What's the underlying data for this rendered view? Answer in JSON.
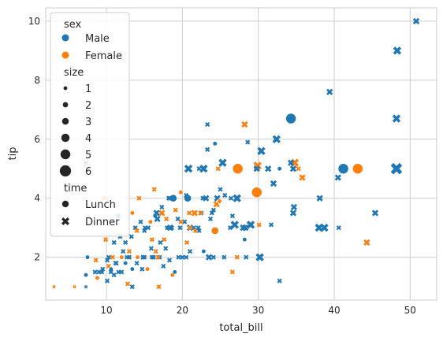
{
  "chart_data": {
    "type": "scatter",
    "xlabel": "total_bill",
    "ylabel": "tip",
    "xlim": [
      2.0,
      53.5
    ],
    "ylim": [
      0.55,
      10.45
    ],
    "xticks": [
      10,
      20,
      30,
      40,
      50
    ],
    "yticks": [
      2,
      4,
      6,
      8,
      10
    ],
    "grid": true,
    "legend_position": "top-left",
    "colors": {
      "Male": "#1f77b4",
      "Female": "#ff7f0e"
    },
    "legend": {
      "hue_title": "sex",
      "hue_items": [
        {
          "label": "Male",
          "color": "#1f77b4"
        },
        {
          "label": "Female",
          "color": "#ff7f0e"
        }
      ],
      "size_title": "size",
      "size_items": [
        {
          "label": "1",
          "size": 1
        },
        {
          "label": "2",
          "size": 2
        },
        {
          "label": "3",
          "size": 3
        },
        {
          "label": "4",
          "size": 4
        },
        {
          "label": "5",
          "size": 5
        },
        {
          "label": "6",
          "size": 6
        }
      ],
      "style_title": "time",
      "style_items": [
        {
          "label": "Lunch",
          "marker": "circle"
        },
        {
          "label": "Dinner",
          "marker": "x"
        }
      ]
    },
    "points": [
      [
        50.8,
        10.0,
        "Male",
        "Dinner",
        3
      ],
      [
        48.3,
        9.0,
        "Male",
        "Dinner",
        4
      ],
      [
        39.4,
        7.6,
        "Male",
        "Dinner",
        3
      ],
      [
        48.2,
        6.7,
        "Male",
        "Dinner",
        4
      ],
      [
        34.3,
        6.7,
        "Male",
        "Lunch",
        6
      ],
      [
        32.4,
        6.0,
        "Male",
        "Dinner",
        4
      ],
      [
        28.2,
        6.5,
        "Female",
        "Dinner",
        3
      ],
      [
        23.3,
        6.5,
        "Male",
        "Dinner",
        2
      ],
      [
        24.3,
        5.85,
        "Male",
        "Lunch",
        2
      ],
      [
        23.3,
        5.65,
        "Male",
        "Dinner",
        2
      ],
      [
        28.6,
        5.9,
        "Male",
        "Dinner",
        2
      ],
      [
        30.4,
        5.6,
        "Male",
        "Dinner",
        4
      ],
      [
        48.2,
        5.0,
        "Male",
        "Dinner",
        6
      ],
      [
        41.2,
        5.0,
        "Male",
        "Lunch",
        6
      ],
      [
        43.1,
        5.0,
        "Female",
        "Lunch",
        6
      ],
      [
        40.5,
        4.7,
        "Male",
        "Dinner",
        3
      ],
      [
        34.8,
        5.2,
        "Female",
        "Dinner",
        4
      ],
      [
        34.6,
        5.0,
        "Male",
        "Dinner",
        3
      ],
      [
        34.3,
        5.2,
        "Male",
        "Dinner",
        3
      ],
      [
        35.3,
        5.0,
        "Female",
        "Dinner",
        2
      ],
      [
        35.8,
        4.7,
        "Female",
        "Dinner",
        3
      ],
      [
        29.9,
        5.1,
        "Female",
        "Dinner",
        4
      ],
      [
        29.8,
        5.0,
        "Male",
        "Dinner",
        3
      ],
      [
        31.3,
        5.0,
        "Male",
        "Dinner",
        3
      ],
      [
        32.8,
        5.0,
        "Male",
        "Lunch",
        2
      ],
      [
        27.3,
        5.0,
        "Female",
        "Lunch",
        6
      ],
      [
        25.3,
        5.2,
        "Male",
        "Dinner",
        4
      ],
      [
        24.7,
        5.0,
        "Female",
        "Dinner",
        2
      ],
      [
        22.8,
        5.0,
        "Male",
        "Dinner",
        4
      ],
      [
        20.8,
        5.0,
        "Male",
        "Dinner",
        4
      ],
      [
        22.2,
        5.0,
        "Male",
        "Dinner",
        2
      ],
      [
        7.3,
        5.2,
        "Male",
        "Dinner",
        2
      ],
      [
        29.8,
        4.2,
        "Female",
        "Lunch",
        6
      ],
      [
        32.0,
        4.5,
        "Male",
        "Dinner",
        3
      ],
      [
        38.1,
        4.0,
        "Male",
        "Dinner",
        3
      ],
      [
        25.0,
        4.3,
        "Male",
        "Dinner",
        2
      ],
      [
        24.6,
        4.0,
        "Male",
        "Dinner",
        3
      ],
      [
        20.7,
        4.0,
        "Male",
        "Lunch",
        4
      ],
      [
        19.8,
        4.2,
        "Female",
        "Lunch",
        2
      ],
      [
        18.8,
        4.0,
        "Male",
        "Lunch",
        4
      ],
      [
        18.2,
        4.0,
        "Male",
        "Dinner",
        2
      ],
      [
        16.3,
        4.3,
        "Female",
        "Dinner",
        2
      ],
      [
        14.3,
        4.0,
        "Female",
        "Dinner",
        2
      ],
      [
        9.7,
        4.0,
        "Female",
        "Dinner",
        2
      ],
      [
        11.6,
        3.4,
        "Male",
        "Dinner",
        2
      ],
      [
        26.4,
        4.0,
        "Male",
        "Dinner",
        2
      ],
      [
        27.2,
        4.0,
        "Male",
        "Dinner",
        4
      ],
      [
        22.7,
        4.0,
        "Male",
        "Dinner",
        2
      ],
      [
        23.1,
        4.0,
        "Male",
        "Dinner",
        3
      ],
      [
        26.9,
        3.1,
        "Male",
        "Dinner",
        4
      ],
      [
        24.1,
        3.6,
        "Male",
        "Dinner",
        2
      ],
      [
        24.5,
        3.8,
        "Female",
        "Dinner",
        3
      ],
      [
        24.9,
        3.9,
        "Female",
        "Lunch",
        2
      ],
      [
        25.6,
        4.1,
        "Male",
        "Dinner",
        2
      ],
      [
        26.3,
        3.0,
        "Male",
        "Dinner",
        2
      ],
      [
        28.0,
        3.0,
        "Male",
        "Dinner",
        3
      ],
      [
        28.3,
        3.0,
        "Male",
        "Dinner",
        3
      ],
      [
        29.0,
        3.1,
        "Male",
        "Dinner",
        4
      ],
      [
        30.1,
        3.1,
        "Female",
        "Dinner",
        2
      ],
      [
        31.7,
        3.1,
        "Male",
        "Dinner",
        2
      ],
      [
        34.6,
        3.5,
        "Male",
        "Dinner",
        3
      ],
      [
        34.7,
        3.7,
        "Male",
        "Dinner",
        3
      ],
      [
        38.0,
        3.0,
        "Male",
        "Dinner",
        4
      ],
      [
        38.7,
        3.0,
        "Male",
        "Dinner",
        4
      ],
      [
        40.6,
        3.0,
        "Male",
        "Dinner",
        2
      ],
      [
        45.4,
        3.5,
        "Male",
        "Dinner",
        3
      ],
      [
        44.3,
        2.5,
        "Female",
        "Dinner",
        3
      ],
      [
        28.2,
        2.6,
        "Male",
        "Lunch",
        2
      ],
      [
        26.6,
        3.4,
        "Male",
        "Dinner",
        2
      ],
      [
        23.7,
        3.3,
        "Male",
        "Dinner",
        2
      ],
      [
        22.5,
        3.5,
        "Male",
        "Dinner",
        2
      ],
      [
        21.6,
        3.5,
        "Female",
        "Dinner",
        3
      ],
      [
        20.9,
        3.5,
        "Female",
        "Dinner",
        2
      ],
      [
        21.0,
        3.0,
        "Male",
        "Dinner",
        3
      ],
      [
        21.5,
        3.0,
        "Male",
        "Dinner",
        2
      ],
      [
        20.3,
        3.2,
        "Male",
        "Dinner",
        2
      ],
      [
        19.8,
        3.2,
        "Female",
        "Dinner",
        2
      ],
      [
        18.4,
        3.0,
        "Male",
        "Dinner",
        3
      ],
      [
        17.3,
        3.5,
        "Female",
        "Dinner",
        3
      ],
      [
        17.9,
        3.3,
        "Female",
        "Dinner",
        2
      ],
      [
        16.4,
        3.4,
        "Male",
        "Lunch",
        2
      ],
      [
        15.8,
        3.2,
        "Female",
        "Lunch",
        2
      ],
      [
        15.1,
        3.0,
        "Male",
        "Dinner",
        2
      ],
      [
        14.5,
        3.2,
        "Male",
        "Dinner",
        2
      ],
      [
        13.4,
        3.5,
        "Female",
        "Lunch",
        2
      ],
      [
        13.8,
        3.0,
        "Male",
        "Dinner",
        2
      ],
      [
        12.5,
        2.5,
        "Male",
        "Dinner",
        2
      ],
      [
        11.0,
        2.5,
        "Male",
        "Dinner",
        2
      ],
      [
        10.3,
        1.7,
        "Female",
        "Dinner",
        2
      ],
      [
        10.1,
        1.9,
        "Male",
        "Dinner",
        2
      ],
      [
        10.3,
        2.0,
        "Male",
        "Dinner",
        2
      ],
      [
        10.8,
        2.0,
        "Female",
        "Dinner",
        2
      ],
      [
        11.2,
        1.8,
        "Male",
        "Dinner",
        2
      ],
      [
        11.6,
        1.5,
        "Male",
        "Dinner",
        2
      ],
      [
        12.0,
        2.0,
        "Female",
        "Lunch",
        2
      ],
      [
        12.5,
        1.8,
        "Male",
        "Lunch",
        2
      ],
      [
        13.0,
        2.0,
        "Female",
        "Lunch",
        2
      ],
      [
        13.4,
        1.6,
        "Male",
        "Lunch",
        2
      ],
      [
        14.1,
        2.0,
        "Female",
        "Lunch",
        2
      ],
      [
        14.8,
        2.0,
        "Male",
        "Dinner",
        2
      ],
      [
        15.4,
        1.6,
        "Female",
        "Lunch",
        2
      ],
      [
        16.0,
        2.0,
        "Male",
        "Dinner",
        2
      ],
      [
        16.5,
        2.2,
        "Female",
        "Dinner",
        2
      ],
      [
        17.0,
        2.0,
        "Male",
        "Dinner",
        2
      ],
      [
        17.5,
        1.7,
        "Male",
        "Dinner",
        2
      ],
      [
        18.3,
        1.9,
        "Male",
        "Dinner",
        2
      ],
      [
        18.7,
        1.4,
        "Female",
        "Lunch",
        2
      ],
      [
        19.0,
        1.5,
        "Male",
        "Lunch",
        2
      ],
      [
        19.5,
        2.0,
        "Male",
        "Dinner",
        2
      ],
      [
        20.0,
        2.0,
        "Male",
        "Dinner",
        2
      ],
      [
        20.5,
        2.0,
        "Male",
        "Dinner",
        2
      ],
      [
        21.0,
        2.2,
        "Male",
        "Dinner",
        2
      ],
      [
        22.2,
        2.9,
        "Male",
        "Dinner",
        2
      ],
      [
        22.8,
        2.2,
        "Male",
        "Lunch",
        2
      ],
      [
        23.5,
        2.0,
        "Male",
        "Dinner",
        3
      ],
      [
        24.1,
        2.0,
        "Male",
        "Dinner",
        2
      ],
      [
        24.3,
        2.9,
        "Female",
        "Lunch",
        4
      ],
      [
        25.5,
        2.0,
        "Male",
        "Dinner",
        2
      ],
      [
        26.6,
        1.5,
        "Female",
        "Dinner",
        2
      ],
      [
        27.2,
        2.0,
        "Female",
        "Dinner",
        2
      ],
      [
        28.4,
        2.0,
        "Male",
        "Dinner",
        2
      ],
      [
        30.2,
        2.0,
        "Male",
        "Dinner",
        4
      ],
      [
        32.8,
        1.2,
        "Male",
        "Dinner",
        2
      ],
      [
        7.3,
        1.4,
        "Male",
        "Lunch",
        2
      ],
      [
        7.5,
        2.0,
        "Male",
        "Lunch",
        2
      ],
      [
        8.5,
        1.5,
        "Male",
        "Dinner",
        2
      ],
      [
        8.8,
        1.3,
        "Female",
        "Lunch",
        2
      ],
      [
        9.0,
        1.5,
        "Male",
        "Dinner",
        2
      ],
      [
        9.5,
        1.6,
        "Male",
        "Dinner",
        2
      ],
      [
        5.8,
        1.0,
        "Female",
        "Dinner",
        1
      ],
      [
        3.1,
        1.0,
        "Female",
        "Dinner",
        1
      ],
      [
        7.3,
        1.0,
        "Male",
        "Dinner",
        1
      ],
      [
        12.8,
        1.1,
        "Female",
        "Dinner",
        2
      ],
      [
        13.4,
        1.0,
        "Male",
        "Dinner",
        2
      ],
      [
        16.9,
        1.0,
        "Female",
        "Dinner",
        2
      ],
      [
        10.1,
        1.2,
        "Male",
        "Dinner",
        2
      ],
      [
        11.0,
        1.4,
        "Male",
        "Dinner",
        2
      ],
      [
        14.7,
        1.6,
        "Male",
        "Dinner",
        2
      ],
      [
        9.9,
        2.6,
        "Female",
        "Dinner",
        2
      ],
      [
        12.2,
        2.2,
        "Male",
        "Dinner",
        2
      ],
      [
        13.3,
        2.7,
        "Male",
        "Dinner",
        2
      ],
      [
        15.0,
        2.9,
        "Male",
        "Dinner",
        2
      ],
      [
        16.0,
        2.6,
        "Female",
        "Dinner",
        2
      ],
      [
        17.6,
        2.6,
        "Female",
        "Dinner",
        2
      ],
      [
        18.6,
        3.0,
        "Male",
        "Dinner",
        2
      ],
      [
        19.4,
        3.3,
        "Male",
        "Dinner",
        2
      ],
      [
        20.6,
        2.5,
        "Female",
        "Dinner",
        2
      ],
      [
        21.7,
        2.9,
        "Female",
        "Dinner",
        2
      ],
      [
        11.8,
        2.7,
        "Male",
        "Dinner",
        2
      ],
      [
        15.5,
        3.0,
        "Male",
        "Dinner",
        2
      ],
      [
        16.6,
        3.5,
        "Male",
        "Dinner",
        3
      ],
      [
        17.8,
        2.3,
        "Male",
        "Dinner",
        2
      ],
      [
        13.0,
        2.2,
        "Female",
        "Dinner",
        2
      ],
      [
        8.6,
        1.9,
        "Female",
        "Dinner",
        2
      ],
      [
        9.4,
        1.5,
        "Male",
        "Dinner",
        2
      ],
      [
        10.6,
        1.6,
        "Male",
        "Lunch",
        2
      ],
      [
        16.2,
        2.0,
        "Male",
        "Dinner",
        2
      ],
      [
        16.7,
        3.3,
        "Male",
        "Dinner",
        3
      ],
      [
        17.3,
        3.7,
        "Male",
        "Dinner",
        2
      ],
      [
        18.3,
        4.0,
        "Male",
        "Dinner",
        2
      ],
      [
        20.5,
        4.1,
        "Male",
        "Dinner",
        2
      ],
      [
        14.0,
        2.9,
        "Female",
        "Dinner",
        2
      ],
      [
        15.9,
        2.3,
        "Male",
        "Dinner",
        2
      ],
      [
        12.7,
        2.0,
        "Male",
        "Dinner",
        2
      ],
      [
        11.3,
        1.8,
        "Male",
        "Dinner",
        2
      ],
      [
        17.1,
        2.5,
        "Male",
        "Dinner",
        2
      ],
      [
        19.1,
        3.6,
        "Female",
        "Dinner",
        2
      ],
      [
        22.4,
        3.5,
        "Female",
        "Dinner",
        2
      ],
      [
        21.0,
        3.0,
        "Female",
        "Dinner",
        2
      ],
      [
        23.9,
        3.5,
        "Male",
        "Dinner",
        2
      ],
      [
        22.1,
        3.0,
        "Male",
        "Dinner",
        2
      ],
      [
        19.7,
        3.0,
        "Male",
        "Dinner",
        2
      ],
      [
        18.0,
        3.0,
        "Male",
        "Dinner",
        2
      ],
      [
        16.8,
        2.0,
        "Female",
        "Dinner",
        2
      ],
      [
        15.0,
        2.0,
        "Male",
        "Dinner",
        2
      ],
      [
        14.0,
        1.8,
        "Male",
        "Dinner",
        2
      ],
      [
        13.0,
        2.0,
        "Male",
        "Dinner",
        2
      ],
      [
        12.0,
        1.5,
        "Male",
        "Dinner",
        2
      ],
      [
        10.6,
        1.5,
        "Male",
        "Dinner",
        2
      ]
    ]
  }
}
